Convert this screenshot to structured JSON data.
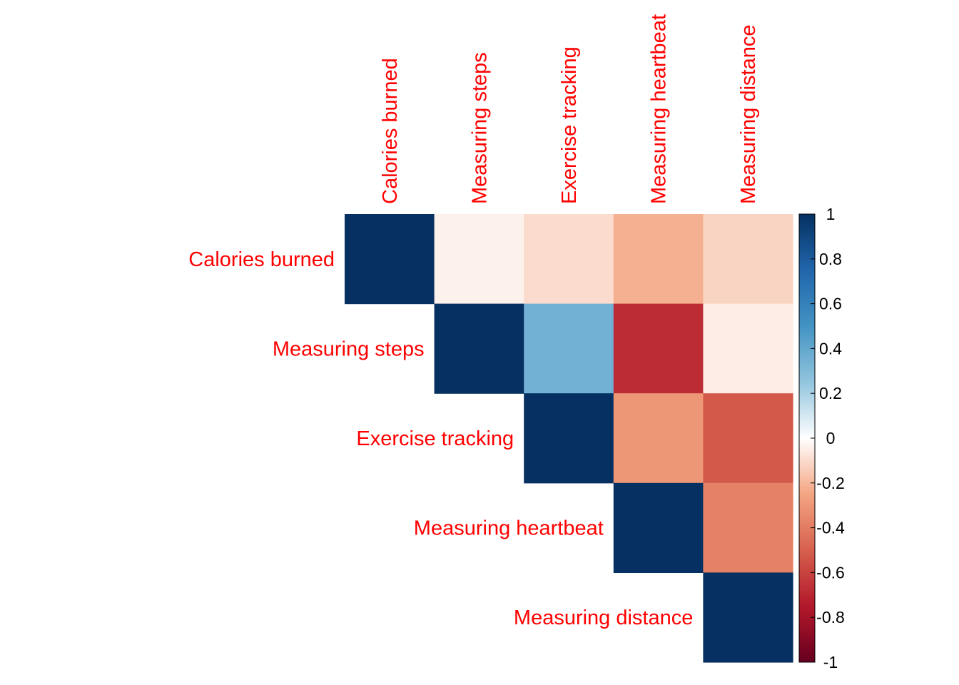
{
  "chart_data": {
    "type": "heatmap",
    "layout": "upper-triangular",
    "row_labels": [
      "Calories burned",
      "Measuring steps",
      "Exercise tracking",
      "Measuring heartbeat",
      "Measuring distance"
    ],
    "col_labels": [
      "Calories burned",
      "Measuring steps",
      "Exercise tracking",
      "Measuring heartbeat",
      "Measuring distance"
    ],
    "values": [
      [
        1,
        -0.04,
        -0.1,
        -0.22,
        -0.12
      ],
      [
        null,
        1,
        0.35,
        -0.68,
        -0.05
      ],
      [
        null,
        null,
        1,
        -0.3,
        -0.52
      ],
      [
        null,
        null,
        null,
        1,
        -0.38
      ],
      [
        null,
        null,
        null,
        null,
        1
      ]
    ],
    "colorbar": {
      "range": [
        -1,
        1
      ],
      "ticks": [
        "1",
        "0.8",
        "0.6",
        "0.4",
        "0.2",
        "0",
        "-0.2",
        "-0.4",
        "-0.6",
        "-0.8",
        "-1"
      ],
      "colors": {
        "-1": "#67001F",
        "-0.75": "#B2182B",
        "-0.5": "#D6604D",
        "-0.25": "#F4A582",
        "0": "#FFFFFF",
        "0.25": "#92C5DE",
        "0.5": "#4393C3",
        "0.75": "#2166AC",
        "1": "#053061"
      }
    },
    "label_color": "#FF0000"
  }
}
